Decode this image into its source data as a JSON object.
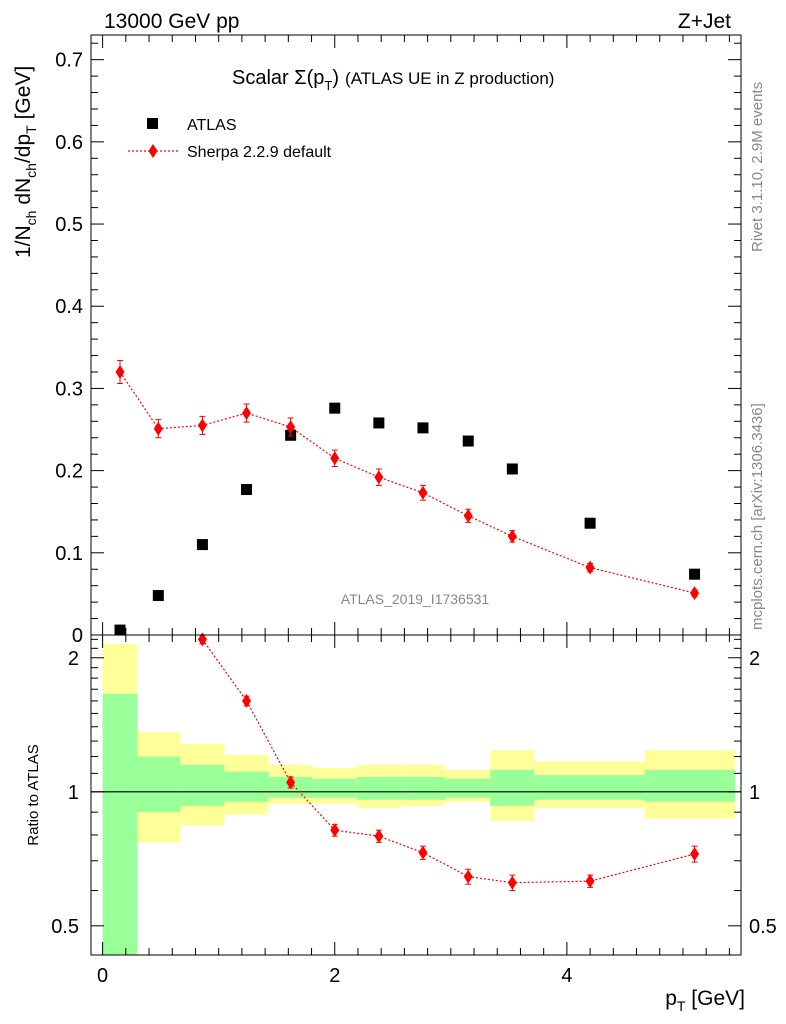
{
  "header": {
    "left": "13000 GeV pp",
    "right": "Z+Jet"
  },
  "side": {
    "rivet": "Rivet 3.1.10,  2.9M events",
    "mcplots": "mcplots.cern.ch [arXiv:1306.3436]"
  },
  "chart_data": [
    {
      "type": "scatter",
      "title": "Scalar Σ(p_T) (ATLAS UE in Z production)",
      "title_parts": {
        "pre": "Scalar ",
        "sigma": "Σ(p",
        "sub": "T",
        "post": ")",
        "suffix": "(ATLAS UE in Z production)"
      },
      "ylabel_parts": {
        "a": "1/N",
        "b": "ch",
        "c": " dN",
        "d": "ch",
        "e": "/dp",
        "f": "T",
        "g": " [GeV]"
      },
      "watermark": "ATLAS_2019_I1736531",
      "xlim": [
        -0.1,
        5.5
      ],
      "ylim": [
        0,
        0.73
      ],
      "y_ticks": [
        {
          "v": 0,
          "label": "0"
        },
        {
          "v": 0.1,
          "label": "0.1"
        },
        {
          "v": 0.2,
          "label": "0.2"
        },
        {
          "v": 0.3,
          "label": "0.3"
        },
        {
          "v": 0.4,
          "label": "0.4"
        },
        {
          "v": 0.5,
          "label": "0.5"
        },
        {
          "v": 0.6,
          "label": "0.6"
        },
        {
          "v": 0.7,
          "label": "0.7"
        }
      ],
      "legend_position": "top-left",
      "series": [
        {
          "name": "ATLAS",
          "style": "square-markers",
          "color": "#000000",
          "x": [
            0.15,
            0.48,
            0.86,
            1.24,
            1.62,
            2.0,
            2.38,
            2.76,
            3.15,
            3.53,
            4.2,
            5.1
          ],
          "y": [
            0.006,
            0.048,
            0.11,
            0.177,
            0.243,
            0.276,
            0.258,
            0.252,
            0.236,
            0.202,
            0.136,
            0.074
          ]
        },
        {
          "name": "Sherpa 2.2.9 default",
          "style": "diamond-dotted-line",
          "color": "#ff0000",
          "x": [
            0.15,
            0.48,
            0.86,
            1.24,
            1.62,
            2.0,
            2.38,
            2.76,
            3.15,
            3.53,
            4.2,
            5.1
          ],
          "y": [
            0.32,
            0.251,
            0.255,
            0.27,
            0.253,
            0.215,
            0.192,
            0.173,
            0.145,
            0.12,
            0.082,
            0.051
          ],
          "err": [
            0.014,
            0.011,
            0.011,
            0.011,
            0.011,
            0.01,
            0.01,
            0.009,
            0.008,
            0.007,
            0.005,
            0.004
          ]
        }
      ]
    },
    {
      "type": "scatter",
      "ylabel": "Ratio to ATLAS",
      "xlabel_parts": {
        "a": "p",
        "b": "T",
        "c": " [GeV]"
      },
      "xlim": [
        -0.1,
        5.5
      ],
      "ylim": [
        0.43,
        2.25
      ],
      "x_ticks": [
        {
          "v": 0,
          "label": "0"
        },
        {
          "v": 2,
          "label": "2"
        },
        {
          "v": 4,
          "label": "4"
        }
      ],
      "y_ticks": [
        {
          "v": 0.5,
          "label": "0.5"
        },
        {
          "v": 1,
          "label": "1"
        },
        {
          "v": 2,
          "label": "2"
        }
      ],
      "bands": [
        {
          "x0": 0.0,
          "x1": 0.3,
          "green": [
            0.43,
            1.66
          ],
          "yellow": [
            0.43,
            2.15
          ]
        },
        {
          "x0": 0.3,
          "x1": 0.67,
          "green": [
            0.9,
            1.2
          ],
          "yellow": [
            0.77,
            1.36
          ]
        },
        {
          "x0": 0.67,
          "x1": 1.05,
          "green": [
            0.93,
            1.15
          ],
          "yellow": [
            0.84,
            1.28
          ]
        },
        {
          "x0": 1.05,
          "x1": 1.43,
          "green": [
            0.95,
            1.11
          ],
          "yellow": [
            0.89,
            1.21
          ]
        },
        {
          "x0": 1.43,
          "x1": 1.81,
          "green": [
            0.97,
            1.08
          ],
          "yellow": [
            0.94,
            1.15
          ]
        },
        {
          "x0": 1.81,
          "x1": 2.19,
          "green": [
            0.97,
            1.07
          ],
          "yellow": [
            0.94,
            1.13
          ]
        },
        {
          "x0": 2.19,
          "x1": 2.57,
          "green": [
            0.96,
            1.08
          ],
          "yellow": [
            0.92,
            1.15
          ]
        },
        {
          "x0": 2.57,
          "x1": 2.95,
          "green": [
            0.96,
            1.08
          ],
          "yellow": [
            0.93,
            1.15
          ]
        },
        {
          "x0": 2.95,
          "x1": 3.34,
          "green": [
            0.97,
            1.07
          ],
          "yellow": [
            0.95,
            1.12
          ]
        },
        {
          "x0": 3.34,
          "x1": 3.72,
          "green": [
            0.93,
            1.12
          ],
          "yellow": [
            0.86,
            1.24
          ]
        },
        {
          "x0": 3.72,
          "x1": 4.67,
          "green": [
            0.96,
            1.09
          ],
          "yellow": [
            0.92,
            1.17
          ]
        },
        {
          "x0": 4.67,
          "x1": 5.45,
          "green": [
            0.95,
            1.12
          ],
          "yellow": [
            0.87,
            1.24
          ]
        }
      ],
      "reference_line": 1,
      "series": [
        {
          "name": "Sherpa 2.2.9 default",
          "color": "#ff0000",
          "x": [
            0.86,
            1.24,
            1.62,
            2.0,
            2.38,
            2.76,
            3.15,
            3.53,
            4.2,
            5.1
          ],
          "y": [
            2.2,
            1.6,
            1.05,
            0.82,
            0.795,
            0.73,
            0.645,
            0.625,
            0.63,
            0.725
          ],
          "err": [
            0.05,
            0.04,
            0.03,
            0.025,
            0.025,
            0.025,
            0.025,
            0.025,
            0.02,
            0.03
          ]
        }
      ]
    }
  ]
}
